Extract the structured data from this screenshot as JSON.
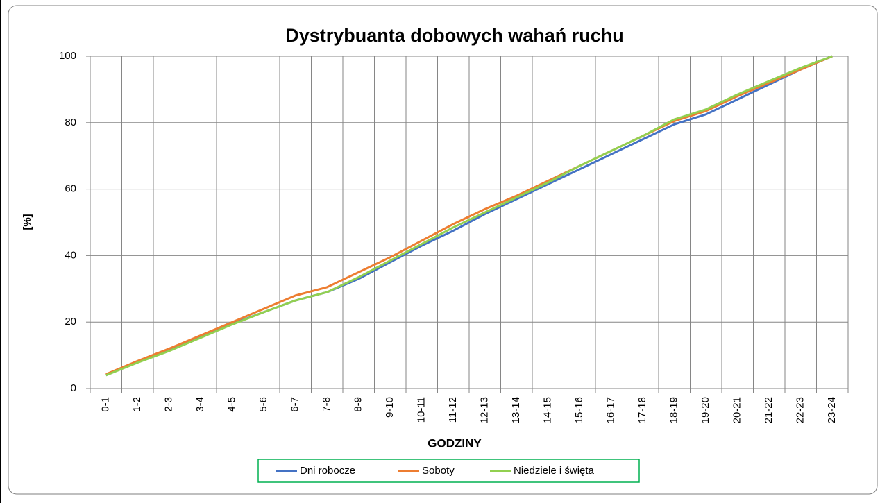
{
  "chart_data": {
    "type": "line",
    "title": "Dystrybuanta dobowych wahań ruchu",
    "x_label": "GODZINY",
    "y_label": "[%]",
    "categories": [
      "0-1",
      "1-2",
      "2-3",
      "3-4",
      "4-5",
      "5-6",
      "6-7",
      "7-8",
      "8-9",
      "9-10",
      "10-11",
      "11-12",
      "12-13",
      "13-14",
      "14-15",
      "15-16",
      "16-17",
      "17-18",
      "18-19",
      "19-20",
      "20-21",
      "21-22",
      "22-23",
      "23-24"
    ],
    "series": [
      {
        "name": "Dni robocze",
        "color": "#4472c4",
        "values": [
          4,
          8,
          11.5,
          15.5,
          19.5,
          23,
          26.5,
          29,
          33,
          38,
          43,
          47.5,
          52.5,
          57,
          61.5,
          66,
          70.5,
          75,
          79.5,
          82.5,
          87,
          91.5,
          96,
          100
        ]
      },
      {
        "name": "Soboty",
        "color": "#ed7d31",
        "values": [
          4.3,
          8.3,
          12,
          16,
          20,
          24,
          28,
          30.5,
          35,
          39.5,
          44.5,
          49.5,
          54,
          58,
          62.5,
          67,
          71.5,
          76,
          80.5,
          83.5,
          88,
          92,
          96,
          100
        ]
      },
      {
        "name": "Niedziele i święta",
        "color": "#92d050",
        "values": [
          4,
          7.8,
          11.3,
          15.3,
          19.3,
          23,
          26.5,
          29,
          33.5,
          38.5,
          43.5,
          48.5,
          53,
          57.5,
          62,
          67,
          71.5,
          76,
          81,
          84,
          88.5,
          92.5,
          96.5,
          100
        ]
      }
    ],
    "ylim": [
      0,
      100
    ],
    "yticks": [
      0,
      20,
      40,
      60,
      80,
      100
    ],
    "grid": true,
    "legend": "bottom"
  }
}
